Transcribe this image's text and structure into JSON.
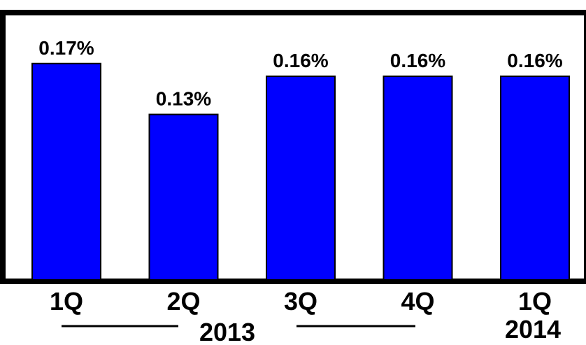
{
  "chart_data": {
    "type": "bar",
    "title": "",
    "xlabel": "",
    "ylabel": "",
    "categories": [
      "1Q",
      "2Q",
      "3Q",
      "4Q",
      "1Q"
    ],
    "values": [
      0.17,
      0.13,
      0.16,
      0.16,
      0.16
    ],
    "data_labels": [
      "0.17%",
      "0.13%",
      "0.16%",
      "0.16%",
      "0.16%"
    ],
    "year_groups": [
      {
        "label": "2013",
        "categories": [
          0,
          1,
          2,
          3
        ]
      },
      {
        "label": "2014",
        "categories": [
          4
        ]
      }
    ],
    "ylim": [
      0,
      0.21
    ],
    "grid": false,
    "legend": "none",
    "colors": {
      "bar": "#0000ff",
      "bar_stroke": "#000000",
      "frame": "#000000"
    }
  }
}
